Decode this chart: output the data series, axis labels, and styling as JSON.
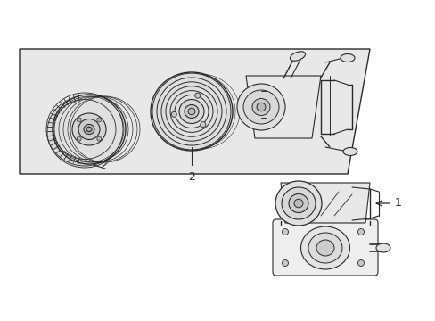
{
  "bg": "#ffffff",
  "box_fill": "#e8e8e8",
  "lc": "#2a2a2a",
  "lc_light": "#555555",
  "label_1": "1",
  "label_2": "2"
}
